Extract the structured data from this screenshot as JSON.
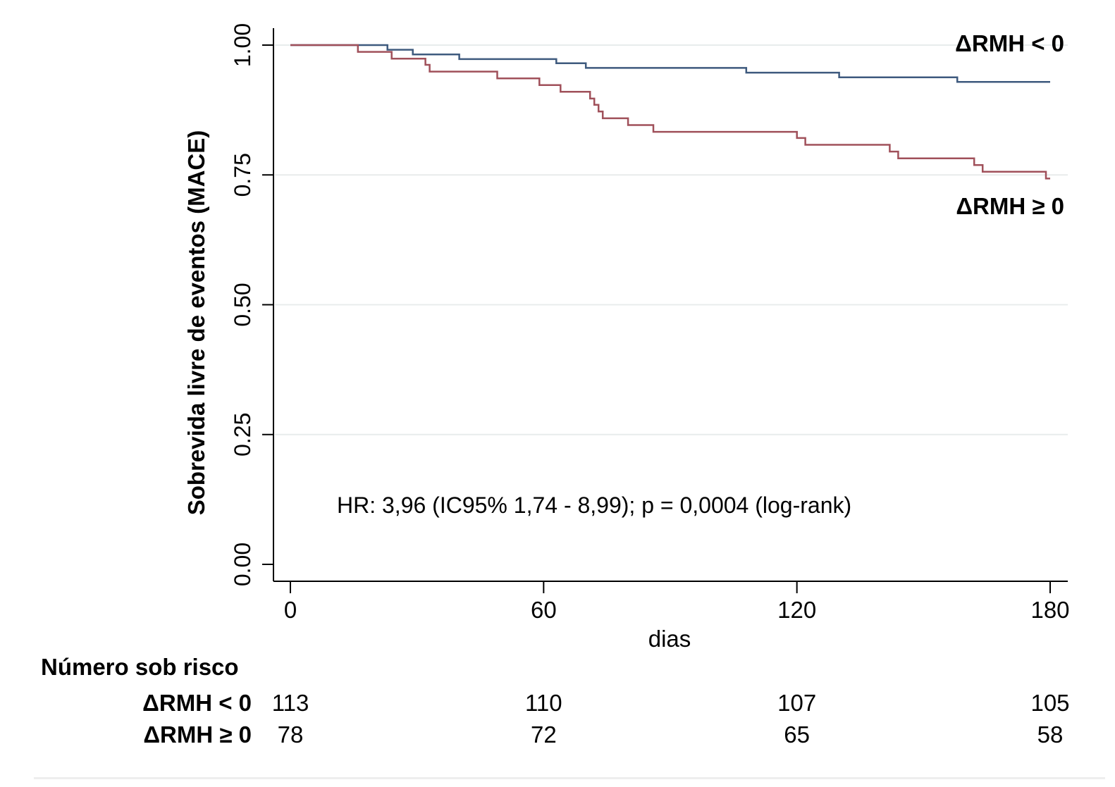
{
  "chart_data": {
    "type": "line",
    "subtype": "kaplan-meier step",
    "ylabel": "Sobrevida livre de eventos (MACE)",
    "xlabel": "dias",
    "xlim": [
      0,
      180
    ],
    "ylim": [
      0,
      1
    ],
    "x_ticks": [
      0,
      60,
      120,
      180
    ],
    "x_tick_labels": [
      "0",
      "60",
      "120",
      "180"
    ],
    "y_ticks": [
      0,
      0.25,
      0.5,
      0.75,
      1.0
    ],
    "y_tick_labels": [
      "0.00",
      "0.25",
      "0.50",
      "0.75",
      "1.00"
    ],
    "grid": "horizontal",
    "annotation": "HR: 3,96 (IC95% 1,74 - 8,99); p = 0,0004 (log-rank)",
    "series": [
      {
        "name": "ΔRMH < 0",
        "color": "#3e5a7e",
        "points": [
          [
            0,
            1.0
          ],
          [
            23,
            1.0
          ],
          [
            23,
            0.991
          ],
          [
            29,
            0.991
          ],
          [
            29,
            0.982
          ],
          [
            40,
            0.982
          ],
          [
            40,
            0.973
          ],
          [
            63,
            0.973
          ],
          [
            63,
            0.965
          ],
          [
            70,
            0.965
          ],
          [
            70,
            0.956
          ],
          [
            108,
            0.956
          ],
          [
            108,
            0.947
          ],
          [
            130,
            0.947
          ],
          [
            130,
            0.938
          ],
          [
            158,
            0.938
          ],
          [
            158,
            0.929
          ],
          [
            180,
            0.929
          ]
        ]
      },
      {
        "name": "ΔRMH ≥ 0",
        "color": "#a0505a",
        "points": [
          [
            0,
            1.0
          ],
          [
            16,
            1.0
          ],
          [
            16,
            0.987
          ],
          [
            24,
            0.987
          ],
          [
            24,
            0.974
          ],
          [
            32,
            0.974
          ],
          [
            32,
            0.962
          ],
          [
            33,
            0.962
          ],
          [
            33,
            0.949
          ],
          [
            49,
            0.949
          ],
          [
            49,
            0.936
          ],
          [
            59,
            0.936
          ],
          [
            59,
            0.923
          ],
          [
            64,
            0.923
          ],
          [
            64,
            0.91
          ],
          [
            71,
            0.91
          ],
          [
            71,
            0.897
          ],
          [
            72,
            0.897
          ],
          [
            72,
            0.885
          ],
          [
            73,
            0.885
          ],
          [
            73,
            0.872
          ],
          [
            74,
            0.872
          ],
          [
            74,
            0.859
          ],
          [
            80,
            0.859
          ],
          [
            80,
            0.846
          ],
          [
            86,
            0.846
          ],
          [
            86,
            0.833
          ],
          [
            120,
            0.833
          ],
          [
            120,
            0.821
          ],
          [
            122,
            0.821
          ],
          [
            122,
            0.808
          ],
          [
            142,
            0.808
          ],
          [
            142,
            0.795
          ],
          [
            144,
            0.795
          ],
          [
            144,
            0.782
          ],
          [
            162,
            0.782
          ],
          [
            162,
            0.769
          ],
          [
            164,
            0.769
          ],
          [
            164,
            0.756
          ],
          [
            179,
            0.756
          ],
          [
            179,
            0.743
          ],
          [
            180,
            0.743
          ]
        ]
      }
    ],
    "series_labels": [
      "ΔRMH < 0",
      "ΔRMH ≥ 0"
    ],
    "risk_table": {
      "title": "Número sob risco",
      "rows": [
        {
          "label": "ΔRMH < 0",
          "values": [
            "113",
            "110",
            "107",
            "105"
          ]
        },
        {
          "label": "ΔRMH ≥ 0",
          "values": [
            "78",
            "72",
            "65",
            "58"
          ]
        }
      ]
    }
  }
}
